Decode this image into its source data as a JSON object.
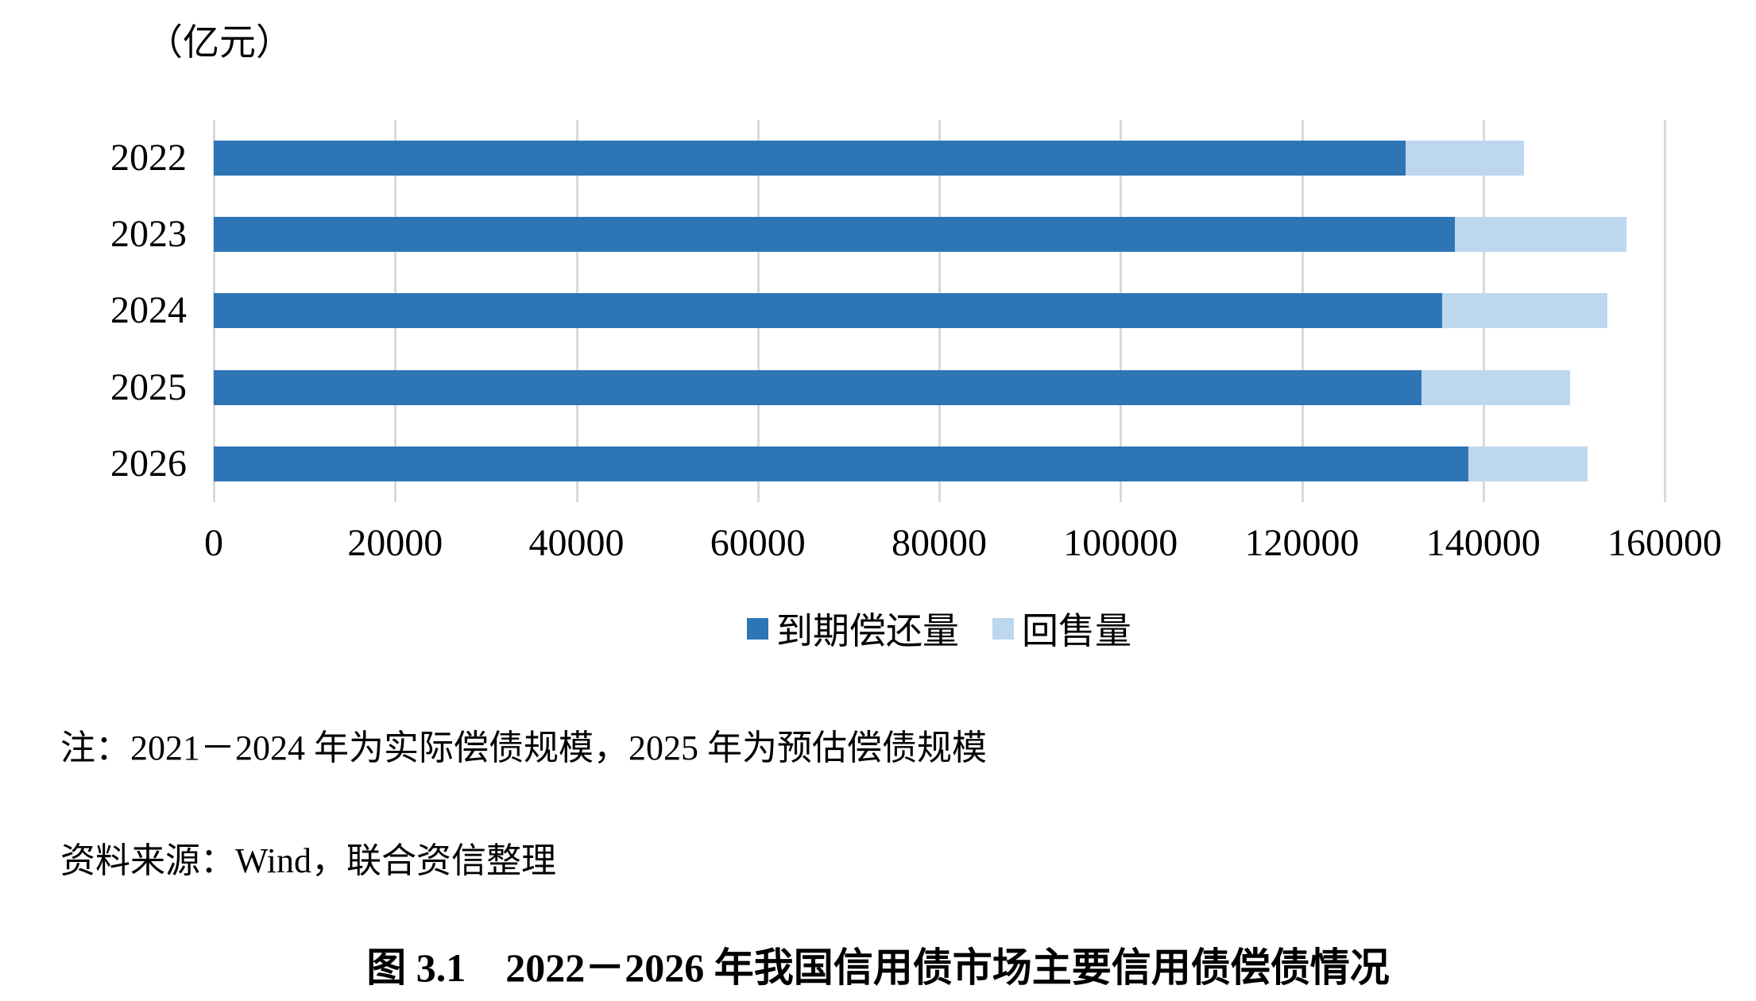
{
  "unit_label": "（亿元）",
  "note": "注：2021－2024 年为实际偿债规模，2025 年为预估偿债规模",
  "source": "资料来源：Wind，联合资信整理",
  "caption": "图 3.1　2022－2026 年我国信用债市场主要信用债偿债情况",
  "colors": {
    "maturity_repayment": "#2E75B6",
    "resale": "#BDD7EE",
    "gridline": "#D9D9D9",
    "text": "#000000",
    "background": "#FFFFFF"
  },
  "chart_data": {
    "type": "bar",
    "orientation": "horizontal",
    "stacked": true,
    "title": "",
    "xlabel": "",
    "ylabel": "",
    "unit": "亿元",
    "categories": [
      "2022",
      "2023",
      "2024",
      "2025",
      "2026"
    ],
    "series": [
      {
        "name": "到期偿还量",
        "color": "#2E75B6",
        "values": [
          131400,
          136900,
          135500,
          133200,
          138400
        ]
      },
      {
        "name": "回售量",
        "color": "#BDD7EE",
        "values": [
          13100,
          18900,
          18200,
          16400,
          13100
        ]
      }
    ],
    "xlim": [
      0,
      160000
    ],
    "xticks": [
      0,
      20000,
      40000,
      60000,
      80000,
      100000,
      120000,
      140000,
      160000
    ],
    "grid": true,
    "legend_position": "bottom"
  }
}
